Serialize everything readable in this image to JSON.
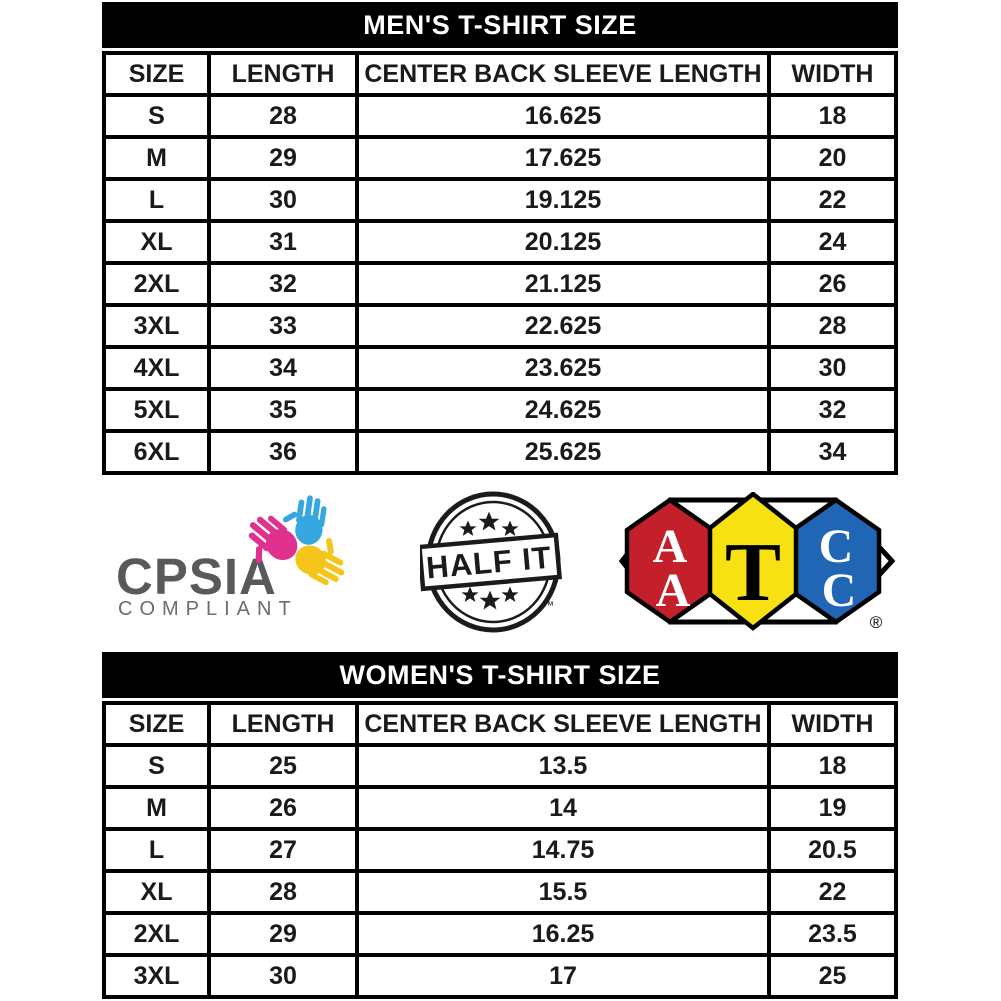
{
  "mens_table": {
    "title": "MEN'S T-SHIRT SIZE",
    "columns": [
      "SIZE",
      "LENGTH",
      "CENTER BACK SLEEVE LENGTH",
      "WIDTH"
    ],
    "rows": [
      [
        "S",
        "28",
        "16.625",
        "18"
      ],
      [
        "M",
        "29",
        "17.625",
        "20"
      ],
      [
        "L",
        "30",
        "19.125",
        "22"
      ],
      [
        "XL",
        "31",
        "20.125",
        "24"
      ],
      [
        "2XL",
        "32",
        "21.125",
        "26"
      ],
      [
        "3XL",
        "33",
        "22.625",
        "28"
      ],
      [
        "4XL",
        "34",
        "23.625",
        "30"
      ],
      [
        "5XL",
        "35",
        "24.625",
        "32"
      ],
      [
        "6XL",
        "36",
        "25.625",
        "34"
      ]
    ]
  },
  "womens_table": {
    "title": "WOMEN'S T-SHIRT SIZE",
    "columns": [
      "SIZE",
      "LENGTH",
      "CENTER BACK SLEEVE LENGTH",
      "WIDTH"
    ],
    "rows": [
      [
        "S",
        "25",
        "13.5",
        "18"
      ],
      [
        "M",
        "26",
        "14",
        "19"
      ],
      [
        "L",
        "27",
        "14.75",
        "20.5"
      ],
      [
        "XL",
        "28",
        "15.5",
        "22"
      ],
      [
        "2XL",
        "29",
        "16.25",
        "23.5"
      ],
      [
        "3XL",
        "30",
        "17",
        "25"
      ]
    ]
  },
  "badges": {
    "cpsia": {
      "title": "CPSIA",
      "subtitle": "COMPLIANT",
      "text_color": "#58595b",
      "hand_colors": {
        "pink": "#e0318e",
        "blue": "#36a7e0",
        "yellow": "#f5c51b"
      }
    },
    "half_it": {
      "label": "HALF IT",
      "trademark": "™",
      "ink_color": "#1b1b1b"
    },
    "aatcc": {
      "hex1_letters": [
        "A",
        "A"
      ],
      "hex2_letters": [
        "T"
      ],
      "hex3_letters": [
        "C",
        "C"
      ],
      "registered": "®",
      "red": "#c4202b",
      "yellow": "#f7e112",
      "blue": "#2166b5"
    }
  }
}
